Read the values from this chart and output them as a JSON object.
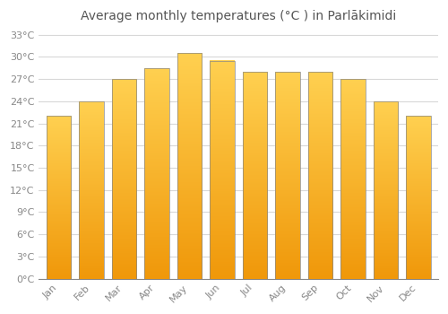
{
  "months": [
    "Jan",
    "Feb",
    "Mar",
    "Apr",
    "May",
    "Jun",
    "Jul",
    "Aug",
    "Sep",
    "Oct",
    "Nov",
    "Dec"
  ],
  "temperatures": [
    22,
    24,
    27,
    28.5,
    30.5,
    29.5,
    28,
    28,
    28,
    27,
    24,
    22
  ],
  "bar_color_top": "#FFD050",
  "bar_color_bottom": "#F0980A",
  "bar_edge_color": "#888888",
  "title": "Average monthly temperatures (°C ) in Parlākimidi",
  "ylim": [
    0,
    34
  ],
  "yticks": [
    0,
    3,
    6,
    9,
    12,
    15,
    18,
    21,
    24,
    27,
    30,
    33
  ],
  "ytick_labels": [
    "0°C",
    "3°C",
    "6°C",
    "9°C",
    "12°C",
    "15°C",
    "18°C",
    "21°C",
    "24°C",
    "27°C",
    "30°C",
    "33°C"
  ],
  "background_color": "#ffffff",
  "grid_color": "#d8d8d8",
  "title_fontsize": 10,
  "tick_fontsize": 8,
  "tick_color": "#888888",
  "bar_width": 0.75,
  "gradient_steps": 100
}
